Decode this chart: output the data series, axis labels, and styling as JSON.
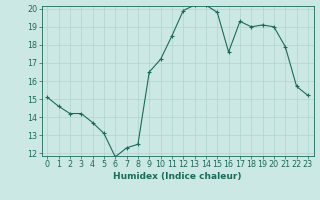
{
  "x": [
    0,
    1,
    2,
    3,
    4,
    5,
    6,
    7,
    8,
    9,
    10,
    11,
    12,
    13,
    14,
    15,
    16,
    17,
    18,
    19,
    20,
    21,
    22,
    23
  ],
  "y": [
    15.1,
    14.6,
    14.2,
    14.2,
    13.7,
    13.1,
    11.8,
    12.3,
    12.5,
    16.5,
    17.2,
    18.5,
    19.9,
    20.2,
    20.2,
    19.8,
    17.6,
    19.3,
    19.0,
    19.1,
    19.0,
    17.9,
    15.7,
    15.2
  ],
  "line_color": "#1a6b5a",
  "marker_color": "#1a6b5a",
  "bg_color": "#cce8e4",
  "grid_color": "#b0d4ce",
  "xlabel": "Humidex (Indice chaleur)",
  "ylim": [
    12,
    20
  ],
  "xlim": [
    -0.5,
    23.5
  ],
  "yticks": [
    12,
    13,
    14,
    15,
    16,
    17,
    18,
    19,
    20
  ],
  "xticks": [
    0,
    1,
    2,
    3,
    4,
    5,
    6,
    7,
    8,
    9,
    10,
    11,
    12,
    13,
    14,
    15,
    16,
    17,
    18,
    19,
    20,
    21,
    22,
    23
  ],
  "tick_color": "#1a6b5a",
  "label_color": "#1a6b5a",
  "tick_fontsize": 5.8,
  "xlabel_fontsize": 6.5
}
